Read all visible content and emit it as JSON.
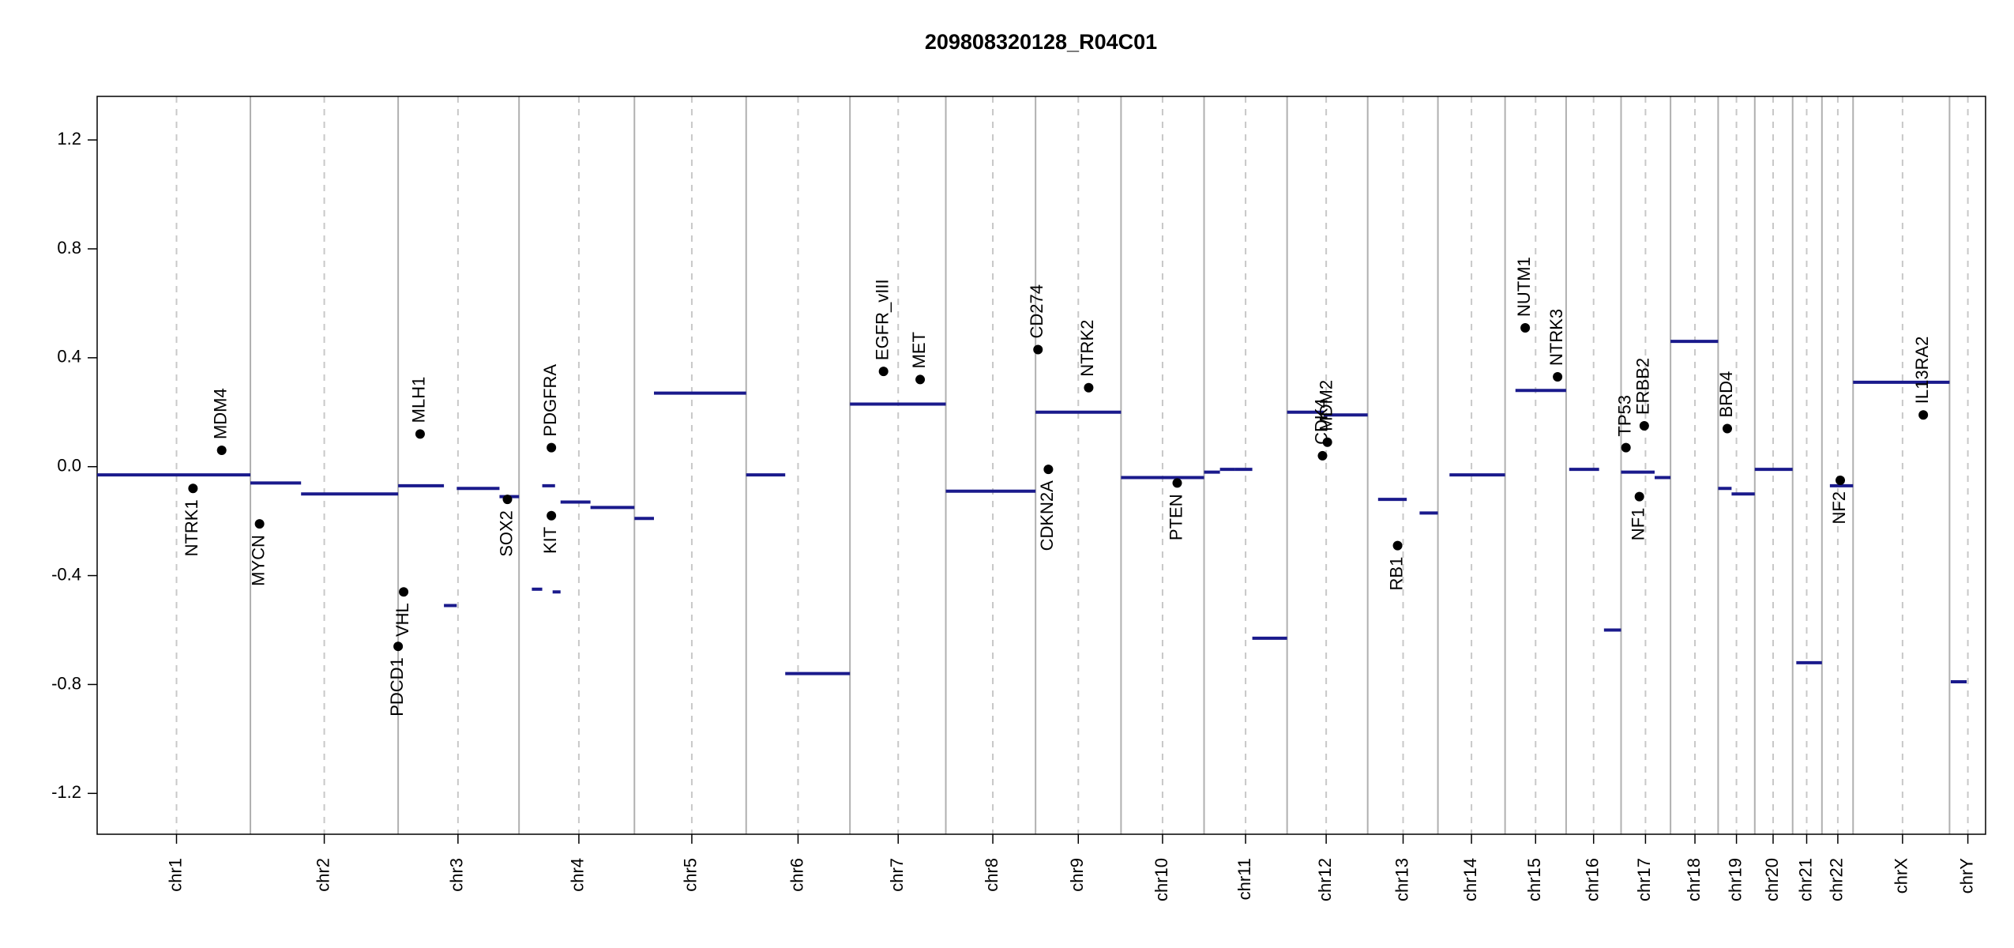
{
  "chart_data": {
    "type": "scatter",
    "title": "209808320128_R04C01",
    "ylim": [
      -1.35,
      1.36
    ],
    "yticks": [
      -1.2,
      -0.8,
      -0.4,
      {
        "value": 0,
        "label": "0.0"
      },
      0.4,
      0.8,
      1.2
    ],
    "xlim": [
      0,
      3093
    ],
    "categories": [
      "chr1",
      "chr2",
      "chr3",
      "chr4",
      "chr5",
      "chr6",
      "chr7",
      "chr8",
      "chr9",
      "chr10",
      "chr11",
      "chr12",
      "chr13",
      "chr14",
      "chr15",
      "chr16",
      "chr17",
      "chr18",
      "chr19",
      "chr20",
      "chr21",
      "chr22",
      "chrX",
      "chrY"
    ],
    "x": [
      130,
      372,
      591,
      789,
      974,
      1148,
      1312,
      1467,
      1607,
      1745,
      1881,
      2013,
      2139,
      2251,
      2356,
      2451,
      2536,
      2617,
      2685,
      2745,
      2800,
      2851,
      2957,
      3064
    ],
    "boundaries": [
      251,
      493,
      691,
      880,
      1063,
      1233,
      1390,
      1537,
      1677,
      1813,
      1949,
      2081,
      2196,
      2306,
      2406,
      2496,
      2577,
      2655,
      2715,
      2777,
      2825,
      2876,
      3034
    ],
    "segment_color": "#1a1a8c",
    "segments": [
      {
        "start": 0,
        "end": 251,
        "value": -0.03
      },
      {
        "start": 251,
        "end": 334,
        "value": -0.06
      },
      {
        "start": 334,
        "end": 493,
        "value": -0.1
      },
      {
        "start": 493,
        "end": 568,
        "value": -0.07
      },
      {
        "start": 568,
        "end": 589,
        "value": -0.51
      },
      {
        "start": 589,
        "end": 659,
        "value": -0.08
      },
      {
        "start": 659,
        "end": 691,
        "value": -0.11
      },
      {
        "start": 712,
        "end": 729,
        "value": -0.45
      },
      {
        "start": 729,
        "end": 750,
        "value": -0.07
      },
      {
        "start": 746,
        "end": 759,
        "value": -0.46
      },
      {
        "start": 759,
        "end": 808,
        "value": -0.13
      },
      {
        "start": 808,
        "end": 880,
        "value": -0.15
      },
      {
        "start": 880,
        "end": 912,
        "value": -0.19
      },
      {
        "start": 912,
        "end": 1063,
        "value": 0.27
      },
      {
        "start": 1063,
        "end": 1127,
        "value": -0.03
      },
      {
        "start": 1127,
        "end": 1233,
        "value": -0.76
      },
      {
        "start": 1233,
        "end": 1390,
        "value": 0.23
      },
      {
        "start": 1390,
        "end": 1537,
        "value": -0.09
      },
      {
        "start": 1537,
        "end": 1677,
        "value": 0.2
      },
      {
        "start": 1677,
        "end": 1813,
        "value": -0.04
      },
      {
        "start": 1813,
        "end": 1839,
        "value": -0.02
      },
      {
        "start": 1839,
        "end": 1864,
        "value": -0.01
      },
      {
        "start": 1864,
        "end": 1892,
        "value": -0.01
      },
      {
        "start": 1892,
        "end": 1949,
        "value": -0.63
      },
      {
        "start": 1949,
        "end": 2009,
        "value": 0.2
      },
      {
        "start": 2009,
        "end": 2081,
        "value": 0.19
      },
      {
        "start": 2098,
        "end": 2145,
        "value": -0.12
      },
      {
        "start": 2166,
        "end": 2196,
        "value": -0.17
      },
      {
        "start": 2215,
        "end": 2306,
        "value": -0.03
      },
      {
        "start": 2323,
        "end": 2406,
        "value": 0.28
      },
      {
        "start": 2411,
        "end": 2460,
        "value": -0.01
      },
      {
        "start": 2468,
        "end": 2496,
        "value": -0.6
      },
      {
        "start": 2496,
        "end": 2551,
        "value": -0.02
      },
      {
        "start": 2551,
        "end": 2577,
        "value": -0.04
      },
      {
        "start": 2577,
        "end": 2655,
        "value": 0.46
      },
      {
        "start": 2655,
        "end": 2677,
        "value": -0.08
      },
      {
        "start": 2677,
        "end": 2715,
        "value": -0.1
      },
      {
        "start": 2715,
        "end": 2777,
        "value": -0.01
      },
      {
        "start": 2783,
        "end": 2825,
        "value": -0.72
      },
      {
        "start": 2838,
        "end": 2876,
        "value": -0.07
      },
      {
        "start": 2876,
        "end": 3034,
        "value": 0.31
      },
      {
        "start": 3036,
        "end": 3062,
        "value": -0.79
      }
    ],
    "genes": [
      {
        "name": "NTRK1",
        "x": 157,
        "y": -0.08
      },
      {
        "name": "MDM4",
        "x": 204,
        "y": 0.06
      },
      {
        "name": "MYCN",
        "x": 266,
        "y": -0.21
      },
      {
        "name": "PDCD1",
        "x": 493,
        "y": -0.66
      },
      {
        "name": "VHL",
        "x": 502,
        "y": -0.46
      },
      {
        "name": "MLH1",
        "x": 529,
        "y": 0.12
      },
      {
        "name": "SOX2",
        "x": 672,
        "y": -0.12
      },
      {
        "name": "KIT",
        "x": 744,
        "y": -0.18
      },
      {
        "name": "PDGFRA",
        "x": 744,
        "y": 0.07
      },
      {
        "name": "EGFR_vIII",
        "x": 1288,
        "y": 0.35
      },
      {
        "name": "MET",
        "x": 1348,
        "y": 0.32
      },
      {
        "name": "CD274",
        "x": 1541,
        "y": 0.43
      },
      {
        "name": "CDKN2A",
        "x": 1558,
        "y": -0.01
      },
      {
        "name": "NTRK2",
        "x": 1624,
        "y": 0.29
      },
      {
        "name": "PTEN",
        "x": 1769,
        "y": -0.06
      },
      {
        "name": "CDK4",
        "x": 2007,
        "y": 0.04
      },
      {
        "name": "MDM2",
        "x": 2015,
        "y": 0.09
      },
      {
        "name": "RB1",
        "x": 2130,
        "y": -0.29
      },
      {
        "name": "NUTM1",
        "x": 2339,
        "y": 0.51
      },
      {
        "name": "NTRK3",
        "x": 2392,
        "y": 0.33
      },
      {
        "name": "TP53",
        "x": 2504,
        "y": 0.07
      },
      {
        "name": "NF1",
        "x": 2526,
        "y": -0.11
      },
      {
        "name": "ERBB2",
        "x": 2534,
        "y": 0.15
      },
      {
        "name": "BRD4",
        "x": 2670,
        "y": 0.14
      },
      {
        "name": "NF2",
        "x": 2855,
        "y": -0.05
      },
      {
        "name": "IL13RA2",
        "x": 2991,
        "y": 0.19
      }
    ]
  }
}
